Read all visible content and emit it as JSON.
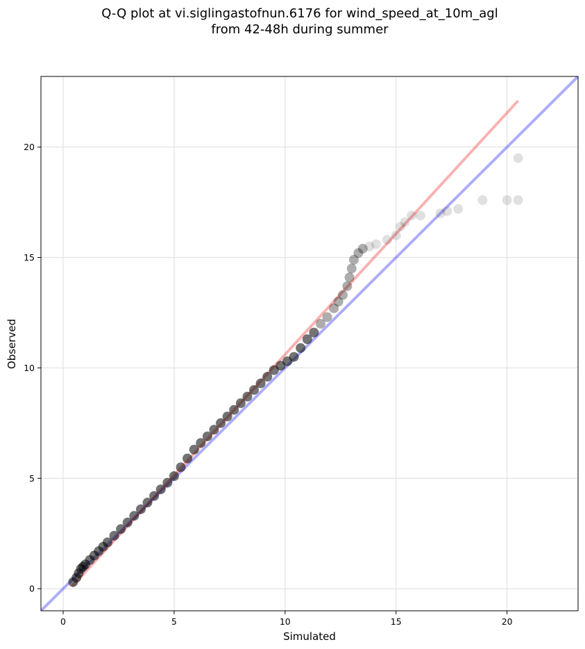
{
  "chart_data": {
    "type": "scatter",
    "title_line1": "Q-Q plot at vi.siglingastofnun.6176 for wind_speed_at_10m_agl",
    "title_line2": "from 42-48h during summer",
    "xlabel": "Simulated",
    "ylabel": "Observed",
    "xlim": [
      -1,
      23.2
    ],
    "ylim": [
      -1,
      23.2
    ],
    "xticks": [
      0,
      5,
      10,
      15,
      20
    ],
    "yticks": [
      0,
      5,
      10,
      15,
      20
    ],
    "grid": true,
    "colors": {
      "points": "#000000",
      "identity_line": "#0000ee",
      "fit_line": "#ee2222",
      "grid": "#dddddd"
    },
    "fit_line": {
      "x": [
        0.4,
        20.5
      ],
      "y": [
        0.1,
        22.1
      ]
    },
    "identity_line": {
      "x": [
        -1,
        23.2
      ],
      "y": [
        -1,
        23.2
      ]
    },
    "points": {
      "x": [
        0.45,
        0.6,
        0.7,
        0.8,
        0.9,
        1.0,
        1.2,
        1.4,
        1.6,
        1.8,
        2.0,
        2.3,
        2.6,
        2.9,
        3.2,
        3.5,
        3.8,
        4.1,
        4.4,
        4.7,
        5.0,
        5.3,
        5.6,
        5.9,
        6.2,
        6.5,
        6.8,
        7.1,
        7.4,
        7.7,
        8.0,
        8.3,
        8.6,
        8.9,
        9.2,
        9.5,
        9.8,
        10.1,
        10.4,
        10.7,
        11.0,
        11.3,
        11.6,
        11.9,
        12.2,
        12.4,
        12.6,
        12.8,
        12.9,
        13.0,
        13.1,
        13.3,
        13.5,
        13.8,
        14.1,
        14.6,
        15.0,
        15.2,
        15.4,
        15.7,
        16.1,
        17.0,
        17.3,
        17.8,
        18.9,
        20.0,
        20.5,
        20.5
      ],
      "y": [
        0.3,
        0.5,
        0.7,
        0.9,
        1.0,
        1.1,
        1.3,
        1.5,
        1.7,
        1.9,
        2.1,
        2.4,
        2.7,
        3.0,
        3.3,
        3.6,
        3.9,
        4.2,
        4.5,
        4.8,
        5.1,
        5.5,
        5.9,
        6.3,
        6.6,
        6.9,
        7.2,
        7.5,
        7.8,
        8.1,
        8.4,
        8.7,
        9.0,
        9.3,
        9.6,
        9.9,
        10.1,
        10.3,
        10.5,
        10.9,
        11.3,
        11.6,
        12.0,
        12.3,
        12.7,
        13.0,
        13.3,
        13.7,
        14.1,
        14.5,
        14.9,
        15.2,
        15.4,
        15.5,
        15.6,
        15.8,
        16.0,
        16.4,
        16.6,
        16.9,
        16.9,
        17.0,
        17.1,
        17.2,
        17.6,
        17.6,
        17.6,
        19.5
      ]
    }
  }
}
